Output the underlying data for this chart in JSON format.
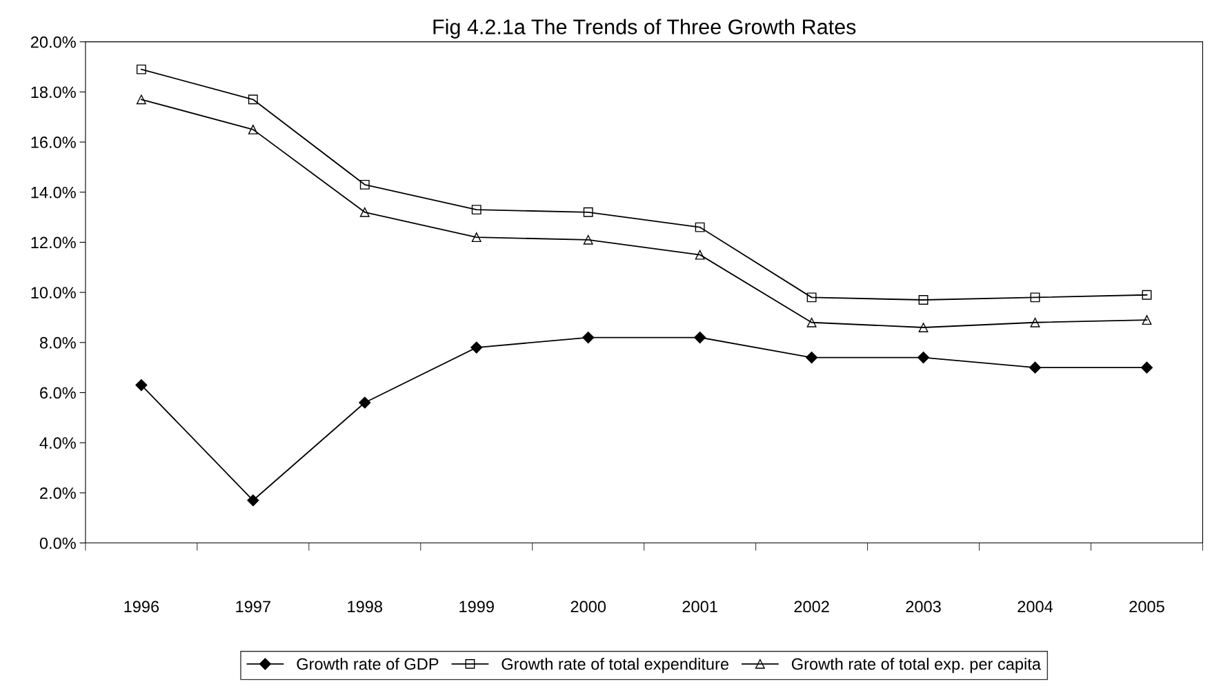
{
  "chart_data": {
    "type": "line",
    "title": "Fig 4.2.1a The Trends of Three Growth Rates",
    "categories": [
      "1996",
      "1997",
      "1998",
      "1999",
      "2000",
      "2001",
      "2002",
      "2003",
      "2004",
      "2005"
    ],
    "series": [
      {
        "name": "Growth rate of GDP",
        "color": "#000000",
        "marker": "diamond",
        "values": [
          6.3,
          1.7,
          5.6,
          7.8,
          8.2,
          8.2,
          7.4,
          7.4,
          7.0,
          7.0
        ]
      },
      {
        "name": "Growth rate of total expenditure",
        "color": "#000000",
        "marker": "square",
        "values": [
          18.9,
          17.7,
          14.3,
          13.3,
          13.2,
          12.6,
          9.8,
          9.7,
          9.8,
          9.9
        ]
      },
      {
        "name": "Growth rate of total exp. per capita",
        "color": "#000000",
        "marker": "triangle",
        "values": [
          17.7,
          16.5,
          13.2,
          12.2,
          12.1,
          11.5,
          8.8,
          8.6,
          8.8,
          8.9
        ]
      }
    ],
    "ylim": [
      0,
      20
    ],
    "yticks": [
      {
        "value": 0,
        "label": "0.0%"
      },
      {
        "value": 2,
        "label": "2.0%"
      },
      {
        "value": 4,
        "label": "4.0%"
      },
      {
        "value": 6,
        "label": "6.0%"
      },
      {
        "value": 8,
        "label": "8.0%"
      },
      {
        "value": 10,
        "label": "10.0%"
      },
      {
        "value": 12,
        "label": "12.0%"
      },
      {
        "value": 14,
        "label": "14.0%"
      },
      {
        "value": 16,
        "label": "16.0%"
      },
      {
        "value": 18,
        "label": "18.0%"
      },
      {
        "value": 20,
        "label": "20.0%"
      }
    ],
    "grid": false,
    "legend": "bottom",
    "line_style": "solid"
  }
}
